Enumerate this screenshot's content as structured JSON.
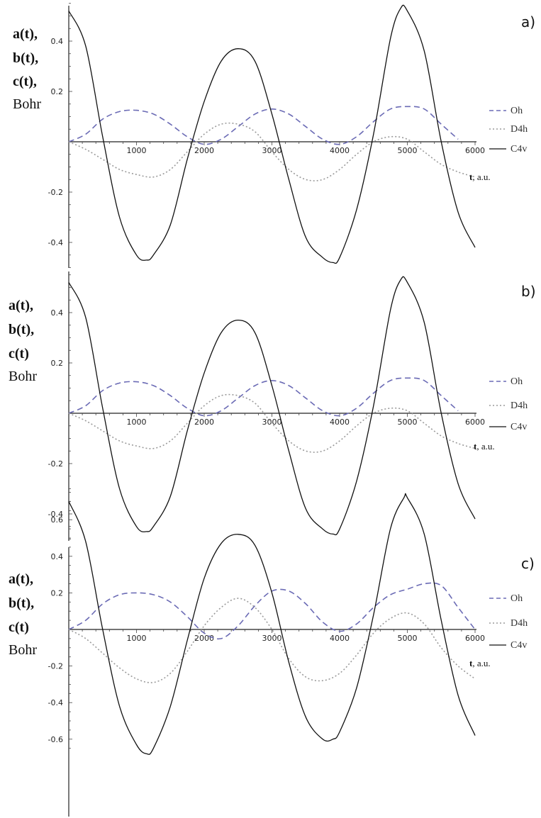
{
  "chart_data": [
    {
      "type": "line",
      "panel_label": "a)",
      "ylabel_lines": [
        "a(t),",
        "b(t),",
        "c(t),",
        "Bohr"
      ],
      "xlabel_bold": "t",
      "xlabel_rest": ", a.u.",
      "xlim": [
        0,
        6000
      ],
      "ylim": [
        -0.5,
        0.55
      ],
      "x_ticks": [
        "1000",
        "2000",
        "3000",
        "4000",
        "5000",
        "6000"
      ],
      "y_ticks": [
        "0.4",
        "0.2",
        "-0.2",
        "-0.4"
      ],
      "legend_position": "right",
      "grid": false,
      "series": [
        {
          "name": "Oh",
          "style": "dashed",
          "color": "#6b6bb5",
          "x": [
            0,
            250,
            500,
            750,
            1000,
            1250,
            1500,
            1750,
            2000,
            2250,
            2500,
            2750,
            3000,
            3250,
            3500,
            3750,
            4000,
            4250,
            4500,
            4750,
            5000,
            5250,
            5500,
            5750
          ],
          "y": [
            0.0,
            0.03,
            0.09,
            0.12,
            0.125,
            0.11,
            0.07,
            0.02,
            -0.01,
            0.01,
            0.06,
            0.11,
            0.13,
            0.11,
            0.06,
            0.01,
            -0.01,
            0.02,
            0.08,
            0.13,
            0.14,
            0.13,
            0.07,
            0.01
          ]
        },
        {
          "name": "D4h",
          "style": "dotted",
          "color": "#9a9a9a",
          "x": [
            0,
            250,
            500,
            750,
            1000,
            1250,
            1500,
            1750,
            2000,
            2250,
            2500,
            2750,
            3000,
            3250,
            3500,
            3750,
            4000,
            4250,
            4500,
            4750,
            5000,
            5250,
            5500,
            5750,
            6000
          ],
          "y": [
            0.0,
            -0.03,
            -0.07,
            -0.11,
            -0.13,
            -0.14,
            -0.11,
            -0.04,
            0.03,
            0.07,
            0.07,
            0.04,
            -0.04,
            -0.11,
            -0.15,
            -0.15,
            -0.11,
            -0.05,
            0.0,
            0.02,
            0.01,
            -0.04,
            -0.09,
            -0.12,
            -0.14
          ]
        },
        {
          "name": "C4v",
          "style": "solid",
          "color": "#111111",
          "x": [
            0,
            250,
            500,
            750,
            1000,
            1150,
            1250,
            1500,
            1750,
            2000,
            2250,
            2500,
            2750,
            3000,
            3250,
            3500,
            3750,
            3900,
            4000,
            4250,
            4500,
            4750,
            4900,
            5000,
            5250,
            5500,
            5750,
            6000
          ],
          "y": [
            0.52,
            0.38,
            0.02,
            -0.3,
            -0.45,
            -0.47,
            -0.45,
            -0.33,
            -0.07,
            0.16,
            0.32,
            0.37,
            0.32,
            0.11,
            -0.15,
            -0.38,
            -0.46,
            -0.48,
            -0.46,
            -0.27,
            0.03,
            0.41,
            0.53,
            0.52,
            0.36,
            0.0,
            -0.28,
            -0.42
          ]
        }
      ]
    },
    {
      "type": "line",
      "panel_label": "b)",
      "ylabel_lines": [
        "a(t),",
        "b(t),",
        "c(t)",
        "Bohr"
      ],
      "xlabel_bold": "t",
      "xlabel_rest": ", a.u.",
      "xlim": [
        0,
        6000
      ],
      "ylim": [
        -0.5,
        0.55
      ],
      "x_ticks": [
        "1000",
        "2000",
        "3000",
        "4000",
        "5000",
        "6000"
      ],
      "y_ticks": [
        "0.4",
        "0.2",
        "-0.2",
        "-0.4"
      ],
      "legend_position": "right",
      "grid": false,
      "series": [
        {
          "name": "Oh",
          "style": "dashed",
          "color": "#6b6bb5",
          "x": [
            0,
            250,
            500,
            750,
            1000,
            1250,
            1500,
            1750,
            2000,
            2250,
            2500,
            2750,
            3000,
            3250,
            3500,
            3750,
            4000,
            4250,
            4500,
            4750,
            5000,
            5250,
            5500,
            5750
          ],
          "y": [
            0.0,
            0.03,
            0.09,
            0.12,
            0.125,
            0.11,
            0.07,
            0.02,
            -0.01,
            0.01,
            0.06,
            0.11,
            0.13,
            0.11,
            0.06,
            0.01,
            -0.01,
            0.02,
            0.08,
            0.13,
            0.14,
            0.13,
            0.07,
            0.01
          ]
        },
        {
          "name": "D4h",
          "style": "dotted",
          "color": "#9a9a9a",
          "x": [
            0,
            250,
            500,
            750,
            1000,
            1250,
            1500,
            1750,
            2000,
            2250,
            2500,
            2750,
            3000,
            3250,
            3500,
            3750,
            4000,
            4250,
            4500,
            4750,
            5000,
            5250,
            5500,
            5750,
            6000
          ],
          "y": [
            0.0,
            -0.03,
            -0.07,
            -0.11,
            -0.13,
            -0.14,
            -0.11,
            -0.04,
            0.03,
            0.07,
            0.07,
            0.04,
            -0.04,
            -0.11,
            -0.15,
            -0.15,
            -0.11,
            -0.05,
            0.0,
            0.02,
            0.01,
            -0.04,
            -0.09,
            -0.12,
            -0.14
          ]
        },
        {
          "name": "C4v",
          "style": "solid",
          "color": "#111111",
          "x": [
            0,
            250,
            500,
            750,
            1000,
            1150,
            1250,
            1500,
            1750,
            2000,
            2250,
            2500,
            2750,
            3000,
            3250,
            3500,
            3750,
            3900,
            4000,
            4250,
            4500,
            4750,
            4900,
            5000,
            5250,
            5500,
            5750,
            6000
          ],
          "y": [
            0.52,
            0.38,
            0.02,
            -0.3,
            -0.45,
            -0.47,
            -0.45,
            -0.33,
            -0.07,
            0.16,
            0.32,
            0.37,
            0.32,
            0.11,
            -0.15,
            -0.38,
            -0.46,
            -0.48,
            -0.46,
            -0.27,
            0.03,
            0.41,
            0.53,
            0.52,
            0.36,
            0.0,
            -0.28,
            -0.42
          ]
        }
      ]
    },
    {
      "type": "line",
      "panel_label": "c)",
      "ylabel_lines": [
        "a(t),",
        "b(t),",
        "c(t)",
        "Bohr"
      ],
      "xlabel_bold": "t",
      "xlabel_rest": ", a.u.",
      "xlim": [
        0,
        6000
      ],
      "ylim": [
        -0.7,
        0.75
      ],
      "x_ticks": [
        "1000",
        "2000",
        "3000",
        "4000",
        "5000",
        "6000"
      ],
      "y_ticks": [
        "0.6",
        "0.4",
        "0.2",
        "-0.2",
        "-0.4",
        "-0.6"
      ],
      "legend_position": "right",
      "grid": false,
      "series": [
        {
          "name": "Oh",
          "style": "dashed",
          "color": "#6b6bb5",
          "x": [
            0,
            250,
            500,
            750,
            1000,
            1250,
            1500,
            1750,
            2000,
            2250,
            2500,
            2750,
            3000,
            3250,
            3500,
            3750,
            4000,
            4250,
            4500,
            4750,
            5000,
            5250,
            5500,
            5750,
            6000
          ],
          "y": [
            0.0,
            0.05,
            0.14,
            0.19,
            0.2,
            0.19,
            0.15,
            0.07,
            -0.02,
            -0.05,
            0.02,
            0.13,
            0.21,
            0.21,
            0.14,
            0.04,
            -0.01,
            0.03,
            0.12,
            0.19,
            0.22,
            0.25,
            0.24,
            0.12,
            0.0
          ]
        },
        {
          "name": "D4h",
          "style": "dotted",
          "color": "#9a9a9a",
          "x": [
            0,
            250,
            500,
            750,
            1000,
            1250,
            1500,
            1750,
            2000,
            2250,
            2500,
            2750,
            3000,
            3250,
            3500,
            3750,
            4000,
            4250,
            4500,
            4750,
            5000,
            5250,
            5500,
            5750,
            6000
          ],
          "y": [
            0.0,
            -0.05,
            -0.13,
            -0.21,
            -0.27,
            -0.29,
            -0.24,
            -0.12,
            0.02,
            0.12,
            0.17,
            0.12,
            0.0,
            -0.16,
            -0.26,
            -0.28,
            -0.24,
            -0.14,
            -0.02,
            0.06,
            0.09,
            0.03,
            -0.1,
            -0.2,
            -0.27
          ]
        },
        {
          "name": "C4v",
          "style": "solid",
          "color": "#111111",
          "x": [
            0,
            250,
            500,
            750,
            1000,
            1150,
            1250,
            1500,
            1750,
            2000,
            2250,
            2500,
            2750,
            3000,
            3250,
            3500,
            3750,
            3900,
            4000,
            4250,
            4500,
            4750,
            4950,
            5000,
            5250,
            5500,
            5750,
            6000
          ],
          "y": [
            0.7,
            0.48,
            0.0,
            -0.42,
            -0.63,
            -0.68,
            -0.65,
            -0.42,
            -0.06,
            0.28,
            0.47,
            0.52,
            0.46,
            0.2,
            -0.18,
            -0.48,
            -0.6,
            -0.6,
            -0.56,
            -0.32,
            0.08,
            0.55,
            0.72,
            0.72,
            0.52,
            0.05,
            -0.36,
            -0.58
          ]
        }
      ]
    }
  ]
}
